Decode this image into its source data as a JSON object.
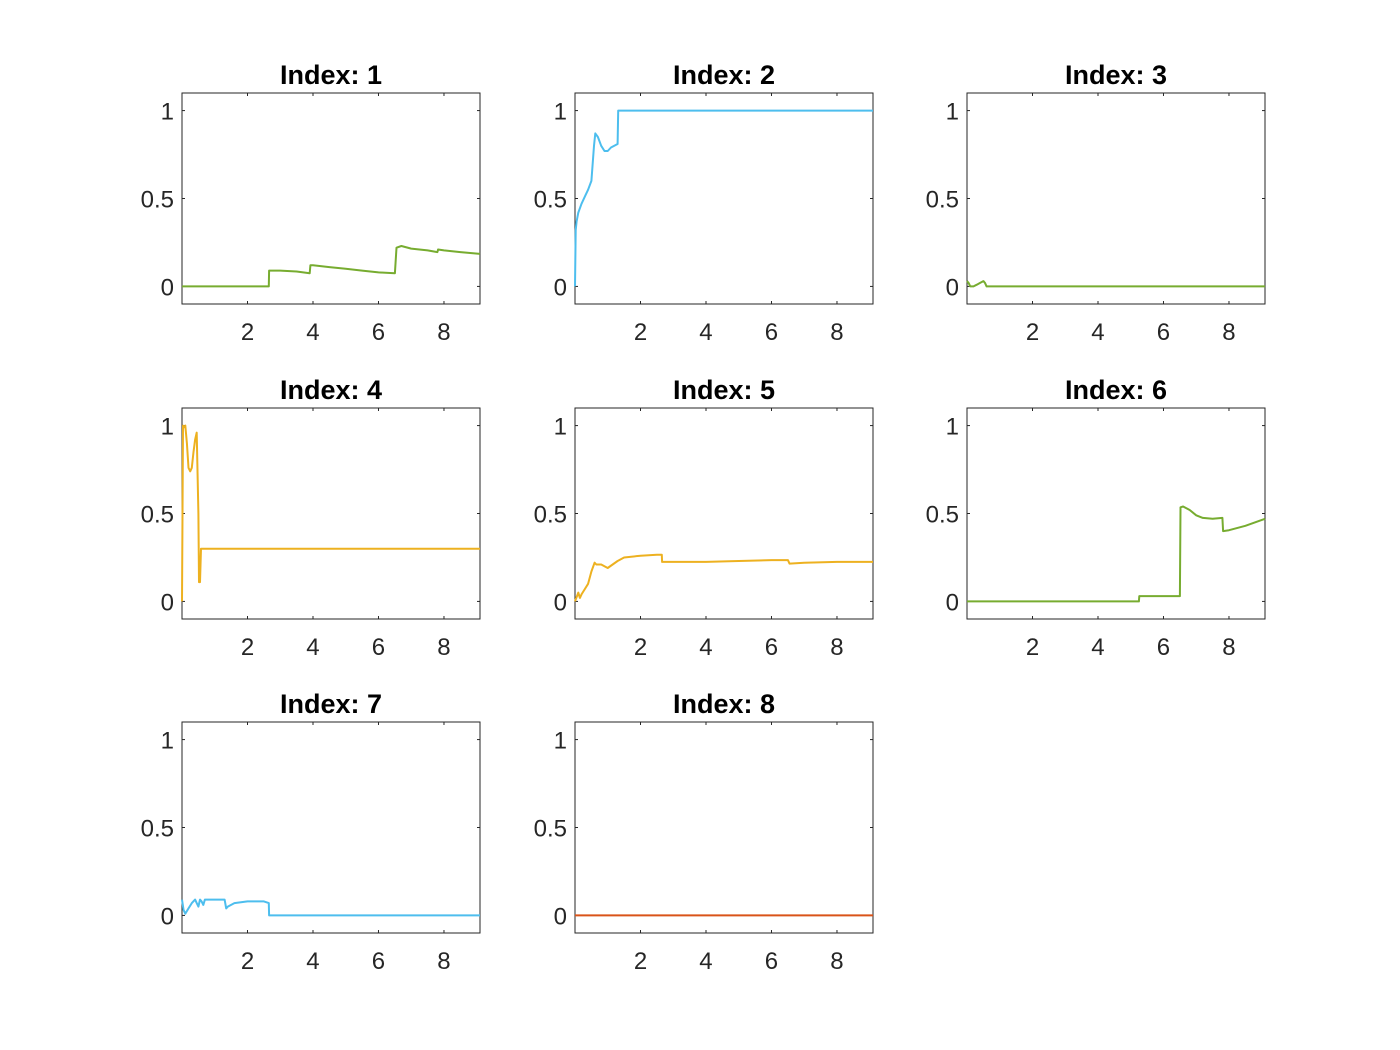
{
  "chart_data": [
    {
      "type": "line",
      "title": "Index: 1",
      "xlabel": "",
      "ylabel": "",
      "xlim": [
        0,
        9.1
      ],
      "ylim": [
        -0.1,
        1.1
      ],
      "xticks": [
        2,
        4,
        6,
        8
      ],
      "yticks": [
        0,
        0.5,
        1
      ],
      "grid": false,
      "series": [
        {
          "color": "#77AC30",
          "x": [
            0,
            2.65,
            2.66,
            3.0,
            3.5,
            3.9,
            3.92,
            4.0,
            4.5,
            5.0,
            5.5,
            6.0,
            6.5,
            6.55,
            6.7,
            7.0,
            7.5,
            7.8,
            7.82,
            8.0,
            8.5,
            9.1
          ],
          "y": [
            0,
            0,
            0.09,
            0.09,
            0.085,
            0.075,
            0.12,
            0.12,
            0.11,
            0.1,
            0.09,
            0.08,
            0.075,
            0.22,
            0.23,
            0.215,
            0.205,
            0.195,
            0.21,
            0.205,
            0.195,
            0.185
          ]
        }
      ]
    },
    {
      "type": "line",
      "title": "Index: 2",
      "xlabel": "",
      "ylabel": "",
      "xlim": [
        0,
        9.1
      ],
      "ylim": [
        -0.1,
        1.1
      ],
      "xticks": [
        2,
        4,
        6,
        8
      ],
      "yticks": [
        0,
        0.5,
        1
      ],
      "grid": false,
      "series": [
        {
          "color": "#4DBEEE",
          "x": [
            0,
            0.02,
            0.05,
            0.1,
            0.2,
            0.3,
            0.4,
            0.5,
            0.58,
            0.62,
            0.7,
            0.8,
            0.9,
            1.0,
            1.1,
            1.3,
            1.32,
            5.0,
            9.1
          ],
          "y": [
            0,
            0.32,
            0.37,
            0.42,
            0.47,
            0.51,
            0.55,
            0.6,
            0.8,
            0.87,
            0.85,
            0.8,
            0.77,
            0.77,
            0.79,
            0.81,
            1.0,
            1.0,
            1.0
          ]
        }
      ]
    },
    {
      "type": "line",
      "title": "Index: 3",
      "xlabel": "",
      "ylabel": "",
      "xlim": [
        0,
        9.1
      ],
      "ylim": [
        -0.1,
        1.1
      ],
      "xticks": [
        2,
        4,
        6,
        8
      ],
      "yticks": [
        0,
        0.5,
        1
      ],
      "grid": false,
      "series": [
        {
          "color": "#77AC30",
          "x": [
            0,
            0.05,
            0.1,
            0.2,
            0.3,
            0.4,
            0.5,
            0.55,
            0.6,
            1.0,
            9.1
          ],
          "y": [
            0.03,
            0.02,
            0.0,
            0.0,
            0.01,
            0.02,
            0.03,
            0.02,
            0.0,
            0.0,
            0.0
          ]
        }
      ]
    },
    {
      "type": "line",
      "title": "Index: 4",
      "xlabel": "",
      "ylabel": "",
      "xlim": [
        0,
        9.1
      ],
      "ylim": [
        -0.1,
        1.1
      ],
      "xticks": [
        2,
        4,
        6,
        8
      ],
      "yticks": [
        0,
        0.5,
        1
      ],
      "grid": false,
      "series": [
        {
          "color": "#EDB120",
          "x": [
            0,
            0.03,
            0.06,
            0.1,
            0.15,
            0.2,
            0.25,
            0.3,
            0.35,
            0.4,
            0.45,
            0.5,
            0.52,
            0.55,
            0.58,
            0.6,
            9.1
          ],
          "y": [
            0,
            1.0,
            0.99,
            1.0,
            0.9,
            0.76,
            0.74,
            0.76,
            0.85,
            0.92,
            0.96,
            0.5,
            0.11,
            0.11,
            0.3,
            0.3,
            0.3
          ]
        }
      ]
    },
    {
      "type": "line",
      "title": "Index: 5",
      "xlabel": "",
      "ylabel": "",
      "xlim": [
        0,
        9.1
      ],
      "ylim": [
        -0.1,
        1.1
      ],
      "xticks": [
        2,
        4,
        6,
        8
      ],
      "yticks": [
        0,
        0.5,
        1
      ],
      "grid": false,
      "series": [
        {
          "color": "#EDB120",
          "x": [
            0,
            0.1,
            0.15,
            0.2,
            0.3,
            0.4,
            0.5,
            0.6,
            0.65,
            0.8,
            1.0,
            1.3,
            1.5,
            2.0,
            2.5,
            2.65,
            2.66,
            3.0,
            4.0,
            5.0,
            6.0,
            6.5,
            6.55,
            7.0,
            8.0,
            9.1
          ],
          "y": [
            0.0,
            0.05,
            0.02,
            0.04,
            0.07,
            0.1,
            0.17,
            0.22,
            0.21,
            0.21,
            0.19,
            0.23,
            0.25,
            0.26,
            0.265,
            0.265,
            0.225,
            0.225,
            0.225,
            0.23,
            0.235,
            0.235,
            0.215,
            0.22,
            0.225,
            0.225
          ]
        }
      ]
    },
    {
      "type": "line",
      "title": "Index: 6",
      "xlabel": "",
      "ylabel": "",
      "xlim": [
        0,
        9.1
      ],
      "ylim": [
        -0.1,
        1.1
      ],
      "xticks": [
        2,
        4,
        6,
        8
      ],
      "yticks": [
        0,
        0.5,
        1
      ],
      "grid": false,
      "series": [
        {
          "color": "#77AC30",
          "x": [
            0,
            5.25,
            5.26,
            6.5,
            6.52,
            6.6,
            6.8,
            7.0,
            7.2,
            7.5,
            7.8,
            7.82,
            8.0,
            8.5,
            9.1
          ],
          "y": [
            0,
            0,
            0.03,
            0.03,
            0.535,
            0.54,
            0.52,
            0.49,
            0.475,
            0.47,
            0.475,
            0.4,
            0.405,
            0.43,
            0.47
          ]
        }
      ]
    },
    {
      "type": "line",
      "title": "Index: 7",
      "xlabel": "",
      "ylabel": "",
      "xlim": [
        0,
        9.1
      ],
      "ylim": [
        -0.1,
        1.1
      ],
      "xticks": [
        2,
        4,
        6,
        8
      ],
      "yticks": [
        0,
        0.5,
        1
      ],
      "grid": false,
      "series": [
        {
          "color": "#4DBEEE",
          "x": [
            0,
            0.05,
            0.1,
            0.2,
            0.3,
            0.4,
            0.45,
            0.5,
            0.55,
            0.6,
            0.65,
            0.7,
            1.0,
            1.3,
            1.35,
            1.4,
            1.6,
            2.0,
            2.5,
            2.65,
            2.66,
            9.1
          ],
          "y": [
            0.09,
            0.03,
            0.01,
            0.04,
            0.07,
            0.09,
            0.07,
            0.05,
            0.09,
            0.08,
            0.06,
            0.09,
            0.09,
            0.09,
            0.04,
            0.05,
            0.07,
            0.08,
            0.08,
            0.07,
            0.0,
            0.0
          ]
        }
      ]
    },
    {
      "type": "line",
      "title": "Index: 8",
      "xlabel": "",
      "ylabel": "",
      "xlim": [
        0,
        9.1
      ],
      "ylim": [
        -0.1,
        1.1
      ],
      "xticks": [
        2,
        4,
        6,
        8
      ],
      "yticks": [
        0,
        0.5,
        1
      ],
      "grid": false,
      "series": [
        {
          "color": "#D95319",
          "x": [
            0,
            9.1
          ],
          "y": [
            0,
            0
          ]
        }
      ]
    }
  ]
}
